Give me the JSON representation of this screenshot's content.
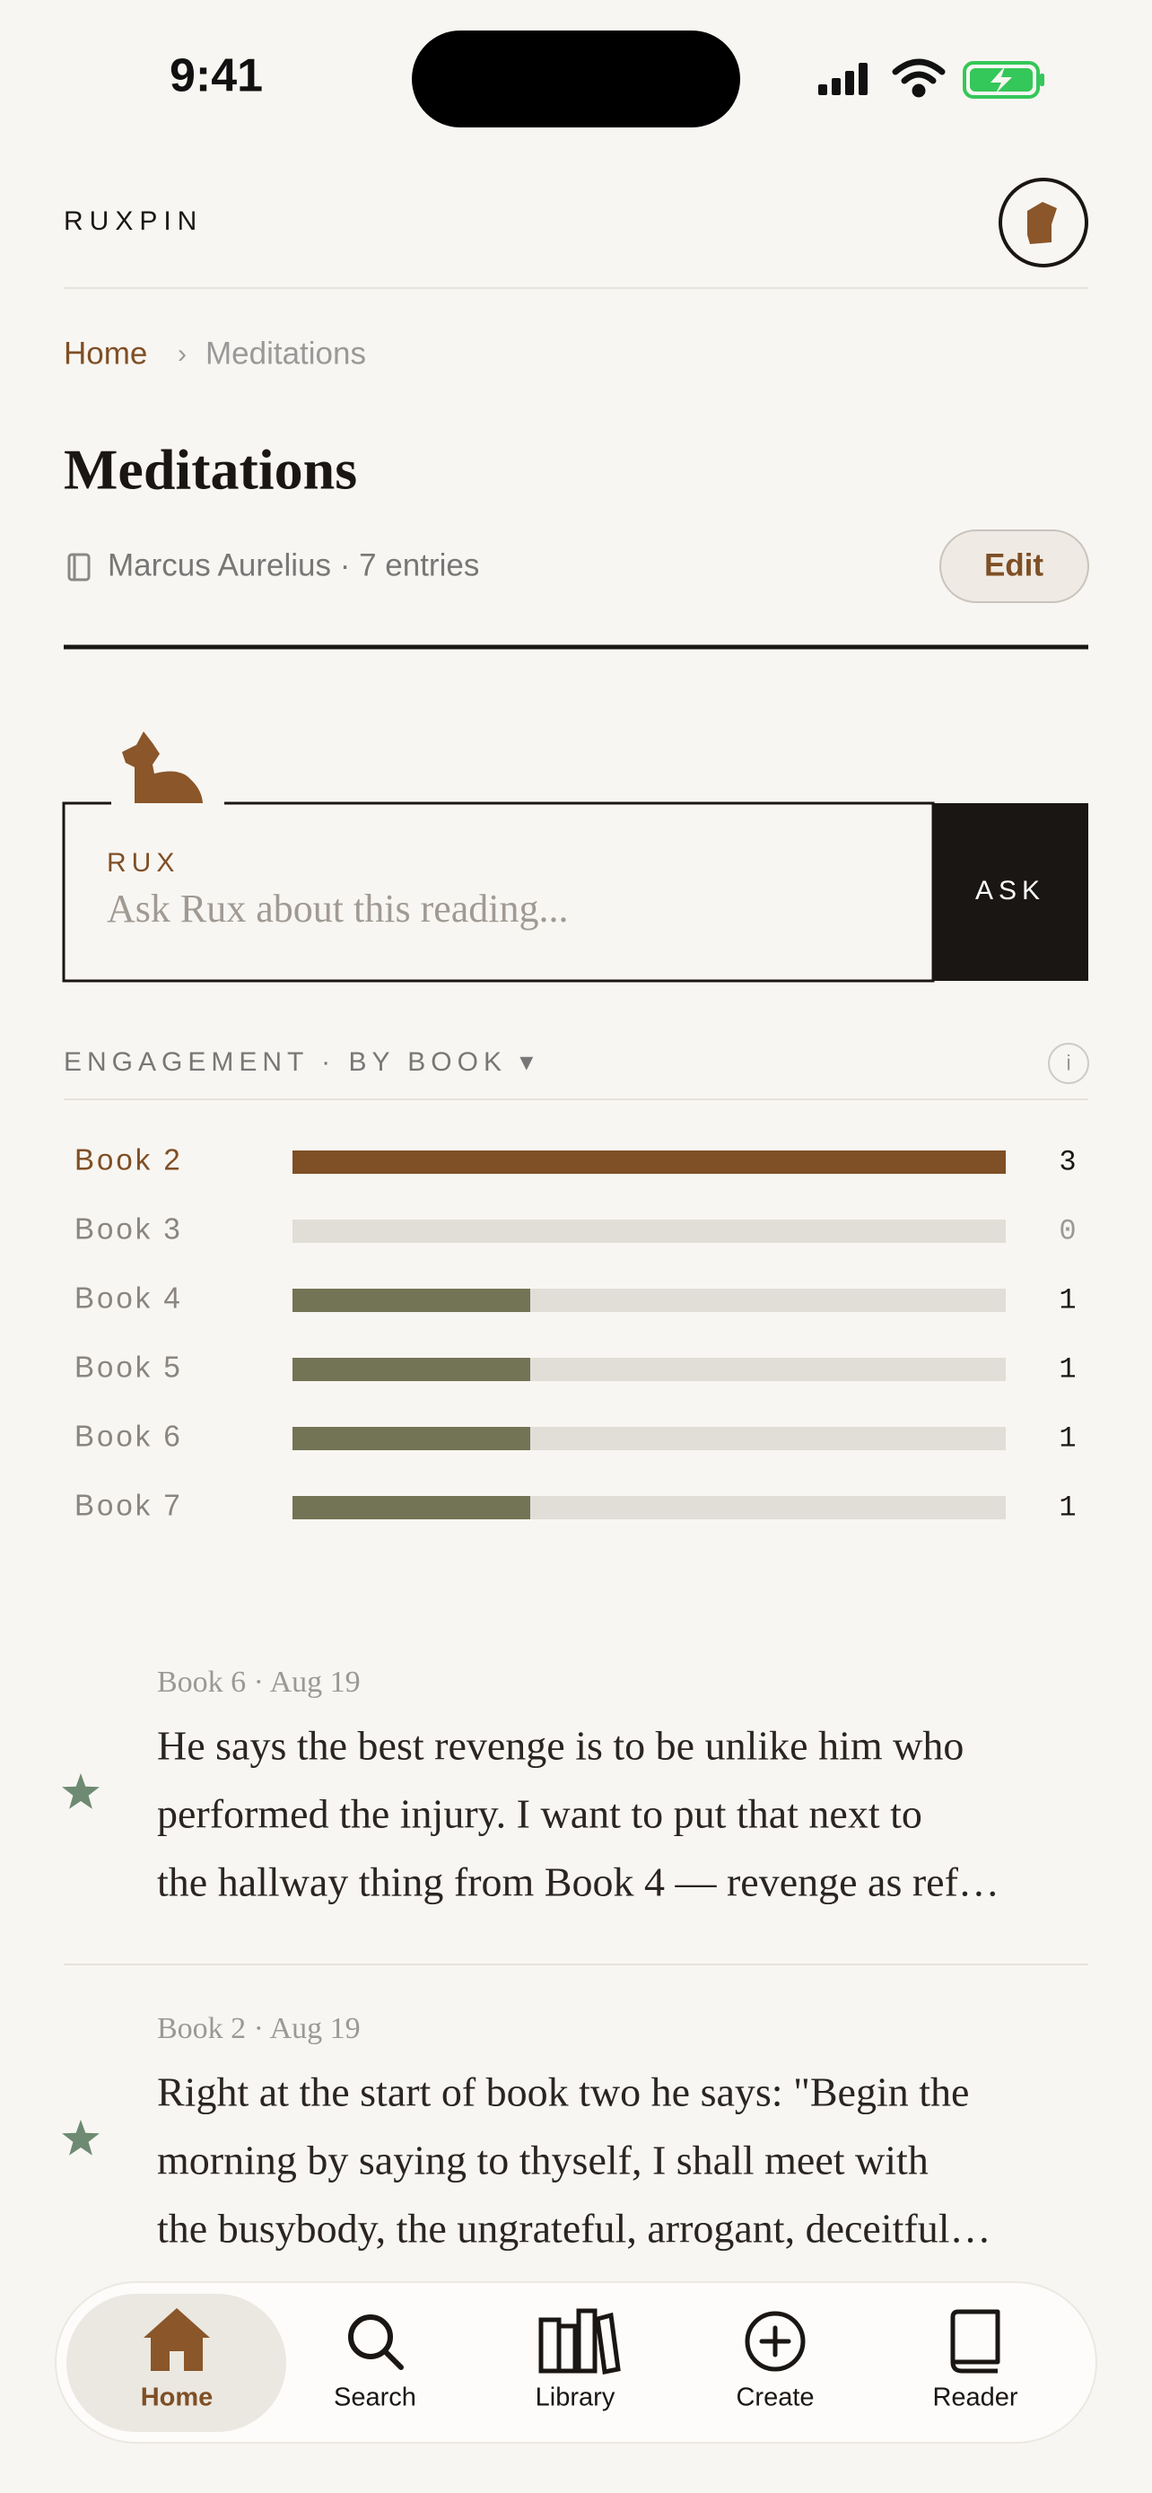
{
  "status_bar": {
    "time": "9:41"
  },
  "header": {
    "brand": "RUXPIN"
  },
  "breadcrumb": {
    "home": "Home",
    "separator": "›",
    "current": "Meditations"
  },
  "title": "Meditations",
  "meta": "Marcus Aurelius · 7 entries",
  "edit_button": "Edit",
  "rux": {
    "label": "RUX",
    "placeholder": "Ask Rux about this reading...",
    "button": "ASK"
  },
  "engagement": {
    "title": "ENGAGEMENT · BY BOOK ▾",
    "info": "i",
    "categories": [
      "Book 2",
      "Book 3",
      "Book 4",
      "Book 5",
      "Book 6",
      "Book 7"
    ],
    "values": [
      3,
      0,
      1,
      1,
      1,
      1
    ],
    "colors": [
      "#7f4f25",
      "#737356",
      "#737356",
      "#737356",
      "#737356",
      "#737356"
    ]
  },
  "entries": [
    {
      "meta": "Book 6 · Aug 19",
      "lines": [
        "He says the best revenge is to be unlike him who",
        "performed the injury. I want to put that next to",
        "the hallway thing from Book 4 — revenge as ref…"
      ]
    },
    {
      "meta": "Book 2 · Aug 19",
      "lines": [
        "Right at the start of book two he says: \"Begin the",
        "morning by saying to thyself, I shall meet with",
        "the busybody, the ungrateful, arrogant, deceitful…"
      ]
    }
  ],
  "nav": {
    "items": [
      "Home",
      "Search",
      "Library",
      "Create",
      "Reader"
    ]
  }
}
